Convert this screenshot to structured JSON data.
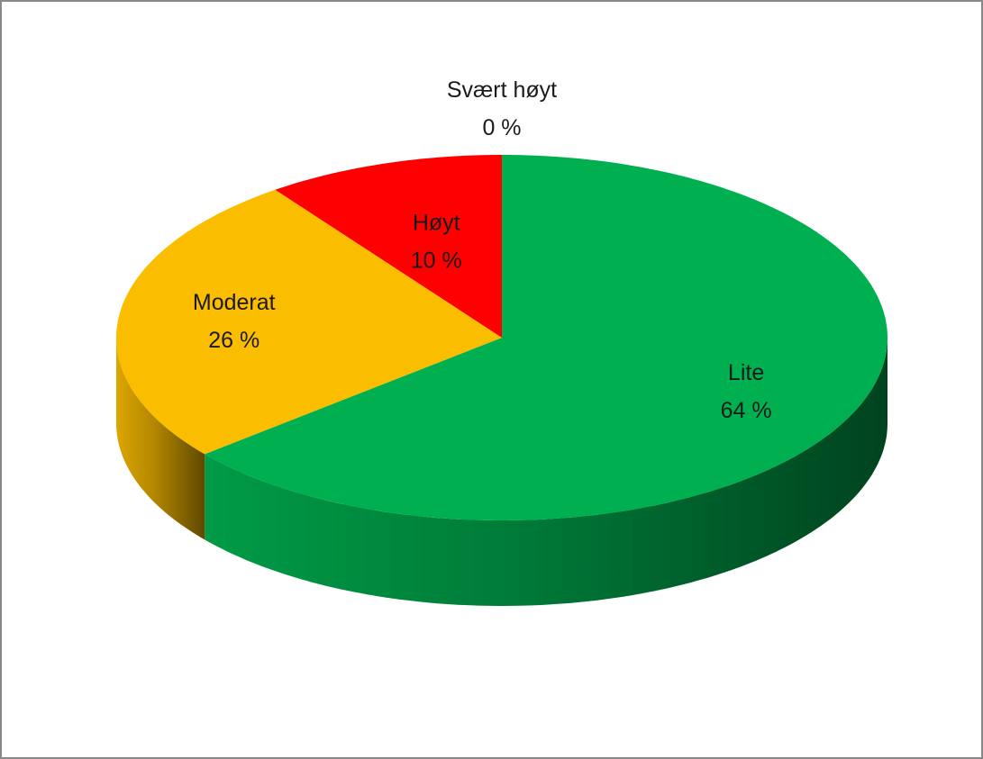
{
  "chart_data": {
    "type": "pie",
    "categories": [
      "Lite",
      "Moderat",
      "Høyt",
      "Svært høyt"
    ],
    "values": [
      64,
      26,
      10,
      0
    ],
    "value_labels": [
      "64 %",
      "26 %",
      "10 %",
      "0 %"
    ],
    "colors": [
      "#00b050",
      "#fbbd00",
      "#ff0000",
      "#c00000"
    ]
  }
}
